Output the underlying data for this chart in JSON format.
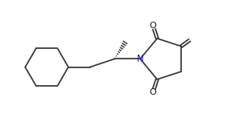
{
  "bg_color": "#ffffff",
  "line_color": "#3c3c3c",
  "bond_lw": 1.3,
  "N_color": "#2020c0",
  "O_color": "#111111",
  "figsize": [
    2.82,
    1.57
  ],
  "dpi": 100,
  "xlim": [
    -0.5,
    10.5
  ],
  "ylim": [
    -0.3,
    5.8
  ]
}
